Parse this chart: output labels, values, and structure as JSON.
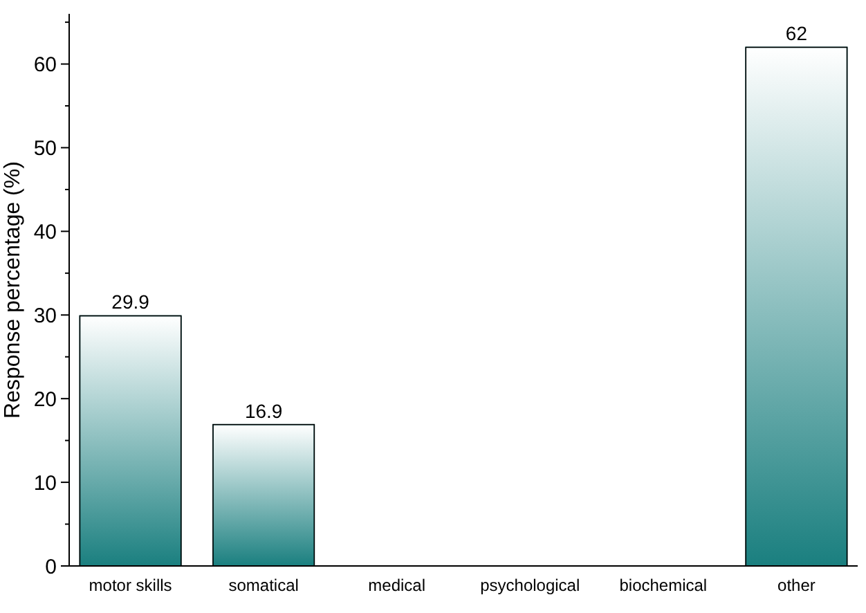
{
  "chart_data": {
    "type": "bar",
    "ylabel": "Response percentage (%)",
    "categories": [
      "motor skills",
      "somatical",
      "medical",
      "psychological",
      "biochemical",
      "other"
    ],
    "values": [
      29.9,
      16.9,
      0,
      0,
      0,
      62
    ],
    "value_labels": [
      "29.9",
      "16.9",
      null,
      null,
      null,
      "62"
    ],
    "color": "#1a7f7f",
    "ylim": [
      0,
      66
    ],
    "yticks": [
      0,
      {
        "value": 5,
        "label": null
      },
      10,
      {
        "value": 15,
        "label": null
      },
      20,
      {
        "value": 25,
        "label": null
      },
      30,
      {
        "value": 35,
        "label": null
      },
      40,
      {
        "value": 45,
        "label": null
      },
      50,
      {
        "value": 55,
        "label": null
      },
      60,
      {
        "value": 65,
        "label": null
      }
    ],
    "grid": false
  }
}
